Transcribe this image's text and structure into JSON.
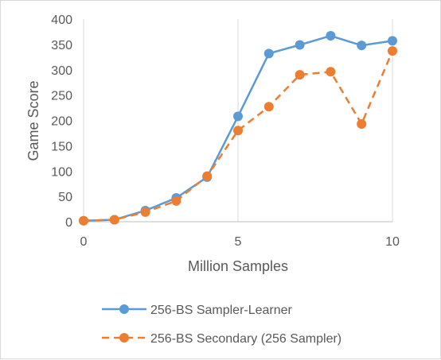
{
  "chart_data": {
    "type": "line",
    "title": "",
    "xlabel": "Million Samples",
    "ylabel": "Game Score",
    "xlim": [
      0,
      10
    ],
    "ylim": [
      0,
      400
    ],
    "x_ticks": [
      "0",
      "5",
      "10"
    ],
    "y_ticks": [
      "0",
      "50",
      "100",
      "150",
      "200",
      "250",
      "300",
      "350",
      "400"
    ],
    "grid": "vertical gridlines at x ticks",
    "legend_position": "bottom",
    "series": [
      {
        "name": "256-BS Sampler-Learner",
        "style": "solid",
        "color": "#5B9BD5",
        "x": [
          0,
          1,
          2,
          3,
          4,
          5,
          6,
          7,
          8,
          9,
          10
        ],
        "y": [
          2,
          4,
          22,
          47,
          88,
          208,
          332,
          349,
          367,
          348,
          357
        ]
      },
      {
        "name": "256-BS Secondary (256 Sampler)",
        "style": "dashed",
        "color": "#ED7D31",
        "x": [
          0,
          1,
          2,
          3,
          4,
          5,
          6,
          7,
          8,
          9,
          10
        ],
        "y": [
          2,
          4,
          19,
          41,
          90,
          180,
          227,
          290,
          296,
          193,
          337
        ]
      }
    ]
  }
}
